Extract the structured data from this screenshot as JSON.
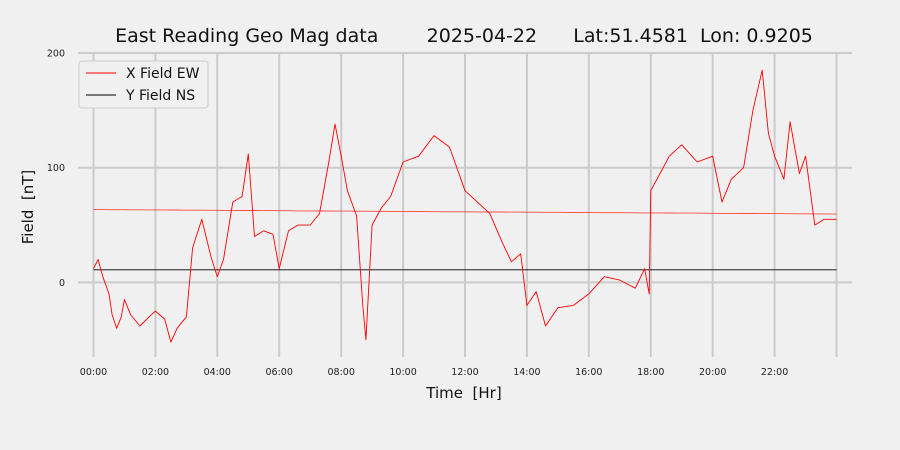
{
  "chart_data": {
    "type": "line",
    "title": "East Reading Geo Mag data        2025-04-22      Lat:51.4581  Lon: 0.9205",
    "xlabel": "Time  [Hr]",
    "ylabel": "Field  [nT]",
    "xlim": [
      -0.5,
      24.5
    ],
    "ylim": [
      -65,
      200
    ],
    "x_ticks": [
      0,
      2,
      4,
      6,
      8,
      10,
      12,
      14,
      16,
      18,
      20,
      22
    ],
    "x_tick_labels": [
      "00:00",
      "02:00",
      "04:00",
      "06:00",
      "08:00",
      "10:00",
      "12:00",
      "14:00",
      "16:00",
      "18:00",
      "20:00",
      "22:00"
    ],
    "y_ticks": [
      0,
      100,
      200
    ],
    "y_tick_labels": [
      "0",
      "100",
      "200"
    ],
    "grid": true,
    "legend_position": "top-left",
    "x": [
      0,
      0.15,
      0.3,
      0.5,
      0.6,
      0.75,
      0.9,
      1.0,
      1.2,
      1.5,
      1.8,
      2.0,
      2.3,
      2.5,
      2.7,
      3.0,
      3.2,
      3.5,
      3.8,
      4.0,
      4.2,
      4.5,
      4.8,
      5.0,
      5.2,
      5.5,
      5.8,
      6.0,
      6.3,
      6.6,
      7.0,
      7.3,
      7.6,
      7.8,
      8.0,
      8.2,
      8.5,
      8.7,
      8.8,
      9.0,
      9.3,
      9.6,
      10.0,
      10.5,
      11.0,
      11.5,
      12.0,
      12.4,
      12.8,
      13.2,
      13.5,
      13.8,
      14.0,
      14.3,
      14.6,
      15.0,
      15.5,
      16.0,
      16.5,
      17.0,
      17.5,
      17.8,
      17.95,
      18.0,
      18.3,
      18.6,
      19.0,
      19.5,
      20.0,
      20.3,
      20.6,
      21.0,
      21.3,
      21.6,
      21.8,
      22.0,
      22.3,
      22.5,
      22.8,
      23.0,
      23.3,
      23.6,
      24.0
    ],
    "series": [
      {
        "name": "X Field EW",
        "color": "#ff0000",
        "values": [
          12,
          20,
          5,
          -10,
          -28,
          -40,
          -30,
          -15,
          -28,
          -38,
          -30,
          -25,
          -32,
          -52,
          -40,
          -30,
          30,
          55,
          22,
          5,
          20,
          70,
          75,
          112,
          40,
          45,
          42,
          12,
          45,
          50,
          50,
          60,
          105,
          138,
          110,
          80,
          58,
          -20,
          -50,
          50,
          65,
          75,
          105,
          110,
          128,
          118,
          80,
          70,
          60,
          35,
          18,
          25,
          -20,
          -8,
          -38,
          -22,
          -20,
          -10,
          5,
          2,
          -5,
          12,
          -10,
          80,
          95,
          110,
          120,
          105,
          110,
          70,
          90,
          100,
          150,
          185,
          130,
          110,
          90,
          140,
          95,
          110,
          50,
          55,
          55
        ]
      },
      {
        "name": "Y Field NS",
        "color": "#000000",
        "values": [
          11,
          11,
          11,
          11,
          11,
          11,
          11,
          11,
          11,
          11,
          11,
          11,
          11,
          11,
          11,
          11,
          11,
          11,
          11,
          11,
          11,
          11,
          11,
          11,
          11,
          11,
          11,
          11,
          11,
          11,
          11,
          11,
          11,
          11,
          11,
          11,
          11,
          11,
          11,
          11,
          11,
          11,
          11,
          11,
          11,
          11,
          11,
          11,
          11,
          11,
          11,
          11,
          11,
          11,
          11,
          11,
          11,
          11,
          11,
          11,
          11,
          11,
          11,
          11,
          11,
          11,
          11,
          11,
          11,
          11,
          11,
          11,
          11,
          11,
          11,
          11,
          11,
          11,
          11,
          11,
          11,
          11,
          11
        ]
      },
      {
        "name": "",
        "color": "#ff0000",
        "opacity": 0.7,
        "values": [
          63.5,
          63.5,
          63.5,
          63.4,
          63.4,
          63.4,
          63.4,
          63.4,
          63.3,
          63.3,
          63.2,
          63.2,
          63.2,
          63.1,
          63.1,
          63.0,
          63.0,
          63.0,
          62.9,
          62.9,
          62.8,
          62.8,
          62.7,
          62.7,
          62.7,
          62.6,
          62.6,
          62.5,
          62.5,
          62.4,
          62.4,
          62.3,
          62.3,
          62.2,
          62.2,
          62.2,
          62.1,
          62.1,
          62.1,
          62.0,
          62.0,
          61.9,
          61.9,
          61.8,
          61.7,
          61.6,
          61.6,
          61.5,
          61.4,
          61.4,
          61.3,
          61.3,
          61.2,
          61.2,
          61.1,
          61.1,
          61.0,
          60.9,
          60.8,
          60.8,
          60.7,
          60.6,
          60.6,
          60.6,
          60.6,
          60.5,
          60.4,
          60.4,
          60.3,
          60.2,
          60.2,
          60.1,
          60.1,
          60.0,
          60.0,
          60.0,
          59.9,
          59.9,
          59.8,
          59.8,
          59.7,
          59.7,
          59.6
        ]
      }
    ]
  }
}
